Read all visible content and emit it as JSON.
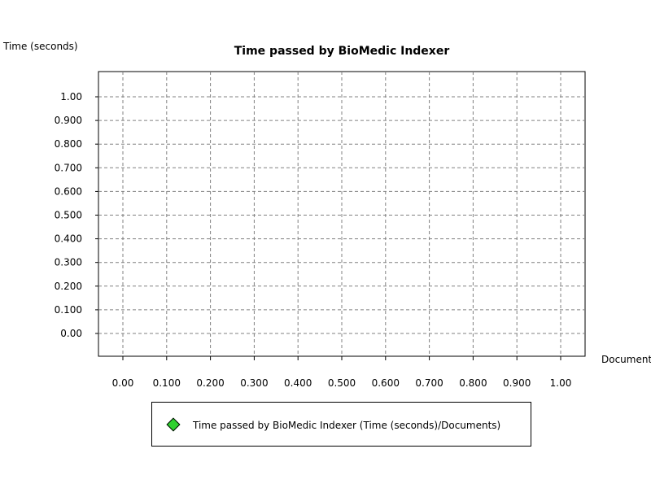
{
  "chart_data": {
    "type": "scatter",
    "title": "Time passed by BioMedic Indexer",
    "xlabel": "Documents",
    "ylabel": "Time (seconds)",
    "xlim": [
      0,
      1
    ],
    "ylim": [
      0,
      1
    ],
    "x_ticks": [
      "0.00",
      "0.100",
      "0.200",
      "0.300",
      "0.400",
      "0.500",
      "0.600",
      "0.700",
      "0.800",
      "0.900",
      "1.00"
    ],
    "y_ticks": [
      "0.00",
      "0.100",
      "0.200",
      "0.300",
      "0.400",
      "0.500",
      "0.600",
      "0.700",
      "0.800",
      "0.900",
      "1.00"
    ],
    "grid": true,
    "legend_position": "bottom",
    "series": [
      {
        "name": "Time passed by BioMedic Indexer (Time (seconds)/Documents)",
        "marker": "diamond",
        "color": "#2fd12f",
        "x": [],
        "y": []
      }
    ]
  }
}
